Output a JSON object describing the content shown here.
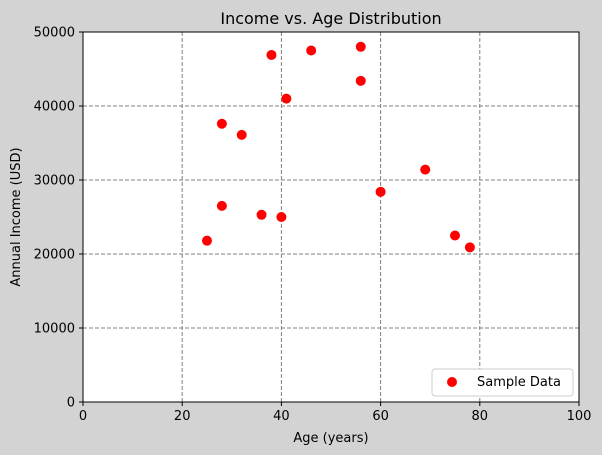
{
  "chart_data": {
    "type": "scatter",
    "title": "Income vs. Age Distribution",
    "xlabel": "Age (years)",
    "ylabel": "Annual Income (USD)",
    "xlim": [
      0,
      100
    ],
    "ylim": [
      0,
      50000
    ],
    "xticks": [
      0,
      20,
      40,
      60,
      80,
      100
    ],
    "yticks": [
      0,
      10000,
      20000,
      30000,
      40000,
      50000
    ],
    "xtick_labels": [
      "0",
      "20",
      "40",
      "60",
      "80",
      "100"
    ],
    "ytick_labels": [
      "0",
      "10000",
      "20000",
      "30000",
      "40000",
      "50000"
    ],
    "grid": true,
    "legend_position": "bottom-right",
    "series": [
      {
        "name": "Sample Data",
        "color": "#ff0000",
        "x": [
          25,
          28,
          28,
          32,
          36,
          38,
          40,
          41,
          46,
          56,
          56,
          60,
          69,
          75,
          78
        ],
        "y": [
          21800,
          26500,
          37600,
          36100,
          25300,
          46900,
          25000,
          41000,
          47500,
          48000,
          43400,
          28400,
          31400,
          22500,
          20900
        ]
      }
    ]
  },
  "colors": {
    "background": "#d3d3d3",
    "plot_area": "#ffffff",
    "grid": "#808080",
    "marker": "#ff0000"
  }
}
